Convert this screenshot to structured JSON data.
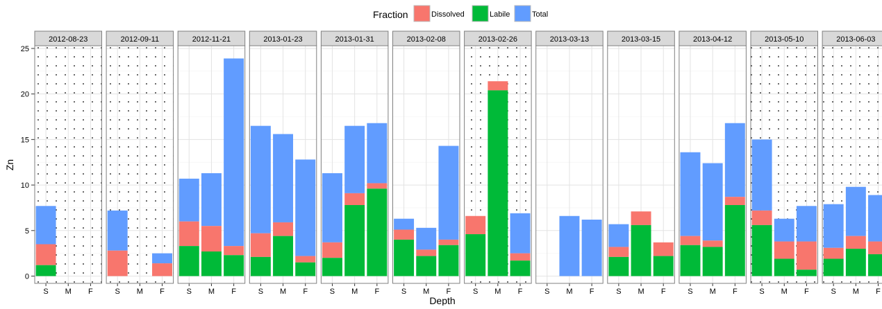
{
  "chart_data": {
    "type": "bar",
    "stacked": true,
    "xlabel": "Depth",
    "ylabel": "Zn",
    "ylim": [
      -0.8,
      25.3
    ],
    "yticks": [
      0,
      5,
      10,
      15,
      20,
      25
    ],
    "categories": [
      "S",
      "M",
      "F"
    ],
    "legend": {
      "title": "Fraction",
      "position": "top",
      "entries": [
        {
          "name": "Dissolved",
          "color": "#F8766D"
        },
        {
          "name": "Labile",
          "color": "#00BA38"
        },
        {
          "name": "Total",
          "color": "#619CFF"
        }
      ]
    },
    "grid": true,
    "panels": [
      {
        "date": "2012-08-23",
        "dotted": true,
        "bars": {
          "S": {
            "Labile": 1.2,
            "Dissolved": 3.5,
            "Total": 7.7
          },
          "M": null,
          "F": null
        }
      },
      {
        "date": "2012-09-11",
        "dotted": true,
        "bars": {
          "S": {
            "Labile": 0,
            "Dissolved": 2.8,
            "Total": 7.2
          },
          "M": null,
          "F": {
            "Labile": 0,
            "Dissolved": 1.4,
            "Total": 2.5
          }
        }
      },
      {
        "date": "2012-11-21",
        "dotted": false,
        "bars": {
          "S": {
            "Labile": 3.3,
            "Dissolved": 6.0,
            "Total": 10.7
          },
          "M": {
            "Labile": 2.7,
            "Dissolved": 5.5,
            "Total": 11.3
          },
          "F": {
            "Labile": 2.3,
            "Dissolved": 3.3,
            "Total": 23.9
          }
        }
      },
      {
        "date": "2013-01-23",
        "dotted": false,
        "bars": {
          "S": {
            "Labile": 2.1,
            "Dissolved": 4.7,
            "Total": 16.5
          },
          "M": {
            "Labile": 4.4,
            "Dissolved": 5.9,
            "Total": 15.6
          },
          "F": {
            "Labile": 1.5,
            "Dissolved": 2.2,
            "Total": 12.8
          }
        }
      },
      {
        "date": "2013-01-31",
        "dotted": false,
        "bars": {
          "S": {
            "Labile": 2.0,
            "Dissolved": 3.7,
            "Total": 11.3
          },
          "M": {
            "Labile": 7.8,
            "Dissolved": 9.1,
            "Total": 16.5
          },
          "F": {
            "Labile": 9.6,
            "Dissolved": 10.2,
            "Total": 16.8
          }
        }
      },
      {
        "date": "2013-02-08",
        "dotted": false,
        "bars": {
          "S": {
            "Labile": 4.0,
            "Dissolved": 5.1,
            "Total": 6.3
          },
          "M": {
            "Labile": 2.2,
            "Dissolved": 2.9,
            "Total": 5.3
          },
          "F": {
            "Labile": 3.4,
            "Dissolved": 4.0,
            "Total": 14.3
          }
        }
      },
      {
        "date": "2013-02-26",
        "dotted": true,
        "bars": {
          "S": {
            "Labile": 4.6,
            "Dissolved": 6.6,
            "Total": 6.6
          },
          "M": {
            "Labile": 20.4,
            "Dissolved": 21.4,
            "Total": 21.4
          },
          "F": {
            "Labile": 1.7,
            "Dissolved": 2.5,
            "Total": 6.9
          }
        }
      },
      {
        "date": "2013-03-13",
        "dotted": false,
        "bars": {
          "S": null,
          "M": {
            "Labile": 0,
            "Dissolved": 0,
            "Total": 6.6
          },
          "F": {
            "Labile": 0,
            "Dissolved": 0,
            "Total": 6.2
          }
        }
      },
      {
        "date": "2013-03-15",
        "dotted": false,
        "bars": {
          "S": {
            "Labile": 2.1,
            "Dissolved": 3.2,
            "Total": 5.7
          },
          "M": {
            "Labile": 5.6,
            "Dissolved": 7.1,
            "Total": 7.1
          },
          "F": {
            "Labile": 2.2,
            "Dissolved": 3.7,
            "Total": 3.7
          }
        }
      },
      {
        "date": "2013-04-12",
        "dotted": false,
        "bars": {
          "S": {
            "Labile": 3.4,
            "Dissolved": 4.4,
            "Total": 13.6
          },
          "M": {
            "Labile": 3.2,
            "Dissolved": 3.9,
            "Total": 12.4
          },
          "F": {
            "Labile": 7.8,
            "Dissolved": 8.7,
            "Total": 16.8
          }
        }
      },
      {
        "date": "2013-05-10",
        "dotted": true,
        "bars": {
          "S": {
            "Labile": 5.6,
            "Dissolved": 7.2,
            "Total": 15.0
          },
          "M": {
            "Labile": 1.9,
            "Dissolved": 3.8,
            "Total": 6.3
          },
          "F": {
            "Labile": 0.7,
            "Dissolved": 3.8,
            "Total": 7.7
          }
        }
      },
      {
        "date": "2013-06-03",
        "dotted": true,
        "bars": {
          "S": {
            "Labile": 1.9,
            "Dissolved": 3.1,
            "Total": 7.9
          },
          "M": {
            "Labile": 3.0,
            "Dissolved": 4.4,
            "Total": 9.8
          },
          "F": {
            "Labile": 2.4,
            "Dissolved": 3.8,
            "Total": 8.9
          }
        }
      }
    ]
  }
}
